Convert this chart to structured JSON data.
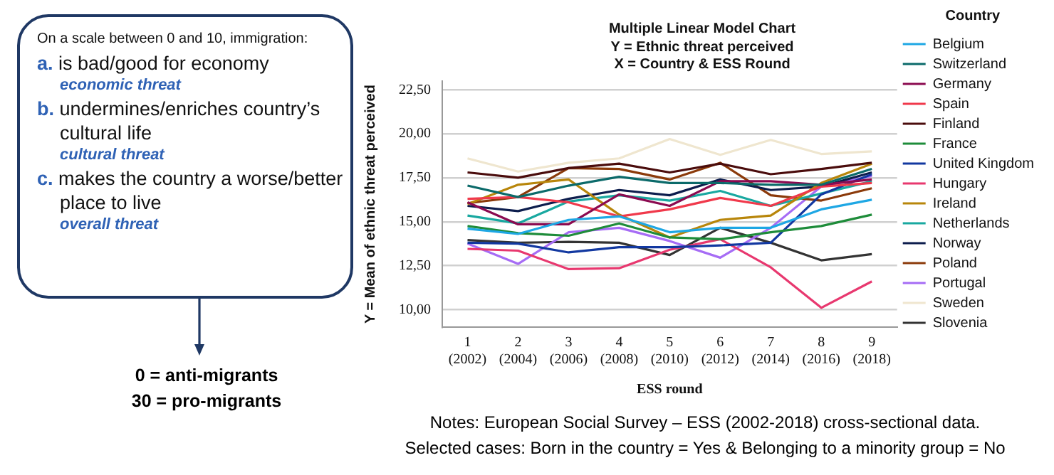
{
  "chart_data": {
    "type": "line",
    "title": "Multiple Linear Model Chart",
    "subtitle": [
      "Y = Ethnic threat perceived",
      "X = Country & ESS Round"
    ],
    "xlabel": "ESS round",
    "ylabel": "Y = Mean of ethnic threat perceived",
    "legend_title": "Country",
    "categories": [
      "1\n(2002)",
      "2\n(2004)",
      "3\n(2006)",
      "4\n(2008)",
      "5\n(2010)",
      "6\n(2012)",
      "7\n(2014)",
      "8\n(2016)",
      "9\n(2018)"
    ],
    "ylim": [
      9,
      23
    ],
    "yticks": [
      {
        "value": 10,
        "label": "10,00"
      },
      {
        "value": 12.5,
        "label": "12,50"
      },
      {
        "value": 15,
        "label": "15,00"
      },
      {
        "value": 17.5,
        "label": "17,50"
      },
      {
        "value": 20,
        "label": "20,00"
      },
      {
        "value": 22.5,
        "label": "22,50"
      }
    ],
    "grid": "y",
    "legend": "right",
    "marker": "none",
    "line_style": "solid",
    "series": [
      {
        "name": "Belgium",
        "color": "#1ea7e4",
        "values": [
          14.6,
          14.3,
          15.1,
          15.3,
          14.4,
          14.65,
          14.65,
          15.7,
          16.25
        ]
      },
      {
        "name": "Switzerland",
        "color": "#0b6a6a",
        "values": [
          17.05,
          16.4,
          17.05,
          17.55,
          17.2,
          17.2,
          17.1,
          17.1,
          18.0
        ]
      },
      {
        "name": "Germany",
        "color": "#8b0a50",
        "values": [
          16.1,
          14.85,
          14.85,
          16.55,
          15.9,
          17.3,
          17.3,
          17.1,
          17.4
        ]
      },
      {
        "name": "Spain",
        "color": "#f0394b",
        "values": [
          16.3,
          16.4,
          16.1,
          15.3,
          15.7,
          16.35,
          15.9,
          17.0,
          17.2
        ]
      },
      {
        "name": "Finland",
        "color": "#4a0c0c",
        "values": [
          17.8,
          17.5,
          18.05,
          18.3,
          17.8,
          18.3,
          17.7,
          18.0,
          18.35
        ]
      },
      {
        "name": "France",
        "color": "#1e8c3a",
        "values": [
          14.75,
          14.35,
          14.2,
          14.9,
          14.1,
          14.0,
          14.4,
          14.75,
          15.4
        ]
      },
      {
        "name": "United Kingdom",
        "color": "#1238a0",
        "values": [
          13.8,
          13.75,
          13.25,
          13.55,
          13.55,
          13.65,
          13.8,
          16.55,
          17.7
        ]
      },
      {
        "name": "Hungary",
        "color": "#e8386f",
        "values": [
          13.45,
          13.35,
          12.3,
          12.35,
          13.4,
          14.0,
          12.4,
          10.1,
          11.6
        ]
      },
      {
        "name": "Ireland",
        "color": "#b8860b",
        "values": [
          16.0,
          17.1,
          17.4,
          15.4,
          14.1,
          15.1,
          15.35,
          17.2,
          18.3
        ]
      },
      {
        "name": "Netherlands",
        "color": "#19a8a0",
        "values": [
          15.35,
          14.9,
          16.15,
          16.5,
          16.2,
          16.75,
          15.9,
          16.6,
          17.3
        ]
      },
      {
        "name": "Norway",
        "color": "#0d1d4d",
        "values": [
          15.9,
          15.6,
          16.3,
          16.8,
          16.5,
          17.4,
          16.8,
          17.0,
          17.8
        ]
      },
      {
        "name": "Poland",
        "color": "#8b3a0a",
        "values": [
          16.05,
          16.4,
          18.05,
          18.0,
          17.4,
          18.35,
          16.5,
          16.2,
          16.9
        ]
      },
      {
        "name": "Portugal",
        "color": "#a66cf5",
        "values": [
          13.75,
          12.6,
          14.4,
          14.65,
          13.9,
          12.95,
          14.65,
          17.0,
          17.6
        ]
      },
      {
        "name": "Sweden",
        "color": "#efe6cf",
        "values": [
          18.6,
          17.85,
          18.35,
          18.6,
          19.7,
          18.8,
          19.65,
          18.85,
          19.0
        ]
      },
      {
        "name": "Slovenia",
        "color": "#333333",
        "values": [
          13.95,
          13.8,
          13.85,
          13.8,
          13.1,
          14.65,
          13.8,
          12.8,
          13.15
        ]
      }
    ],
    "annotations": [
      "On a scale between 0 and 10, immigration:",
      "a. is bad/good for economy",
      "economic threat",
      "b. undermines/enriches country’s cultural life",
      "cultural threat",
      "c. makes the country a worse/better place to live",
      "overall threat",
      "0 = anti-migrants",
      "30 = pro-migrants",
      "Notes: European Social Survey – ESS (2002-2018) cross-sectional data.",
      "Selected cases: Born in the country = Yes & Belonging to a minority group = No"
    ]
  }
}
